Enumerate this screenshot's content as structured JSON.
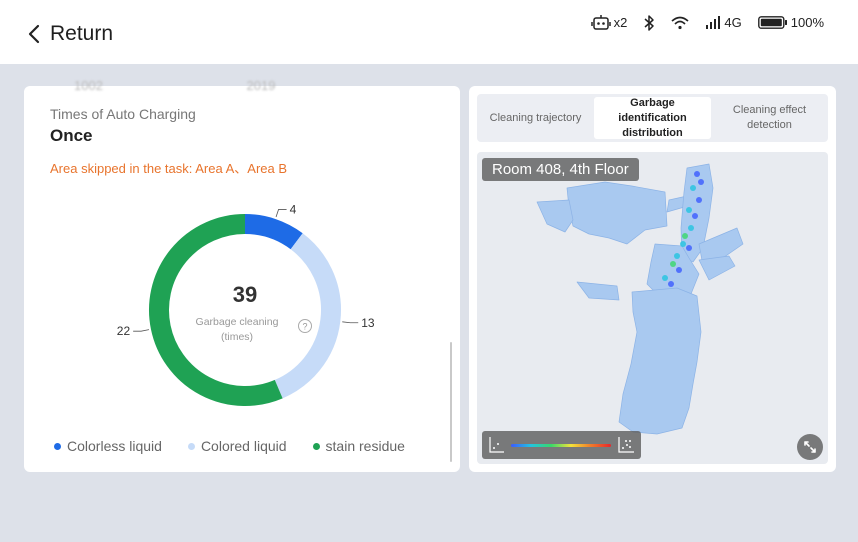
{
  "header": {
    "title": "Return",
    "status": {
      "robot_count": "x2",
      "network": "4G",
      "battery": "100%",
      "battery_level": 1.0
    }
  },
  "stats": {
    "faded_text_left": "1002",
    "faded_text_right": "2019",
    "auto_charging_label": "Times of Auto Charging",
    "auto_charging_value": "Once",
    "skipped_areas": "Area skipped in the task: Area A、Area B"
  },
  "chart_data": {
    "type": "pie",
    "total": 39,
    "center_label_line1": "Garbage cleaning",
    "center_label_line2": "(times)",
    "series": [
      {
        "name": "Colorless liquid",
        "value": 4,
        "color": "#1e6be6"
      },
      {
        "name": "Colored liquid",
        "value": 13,
        "color": "#c6dbf8"
      },
      {
        "name": "stain residue",
        "value": 22,
        "color": "#1fa254"
      }
    ],
    "legend_position": "bottom"
  },
  "tabs": [
    {
      "label": "Cleaning trajectory",
      "active": false
    },
    {
      "label": "Garbage identification distribution",
      "active": true
    },
    {
      "label": "Cleaning effect detection",
      "active": false
    }
  ],
  "map": {
    "room_label": "Room 408, 4th Floor",
    "map_color": "#a9c9f0",
    "heat_gradient": [
      "#3b5bff",
      "#22c4e0",
      "#38d86a",
      "#f3e23a",
      "#f07a2a",
      "#e8262b"
    ]
  },
  "icons": {
    "back": "chevron-left-icon",
    "robot": "robot-icon",
    "bluetooth": "bluetooth-icon",
    "wifi": "wifi-icon",
    "signal": "signal-icon",
    "battery": "battery-icon",
    "help": "help-icon",
    "expand": "expand-icon"
  }
}
